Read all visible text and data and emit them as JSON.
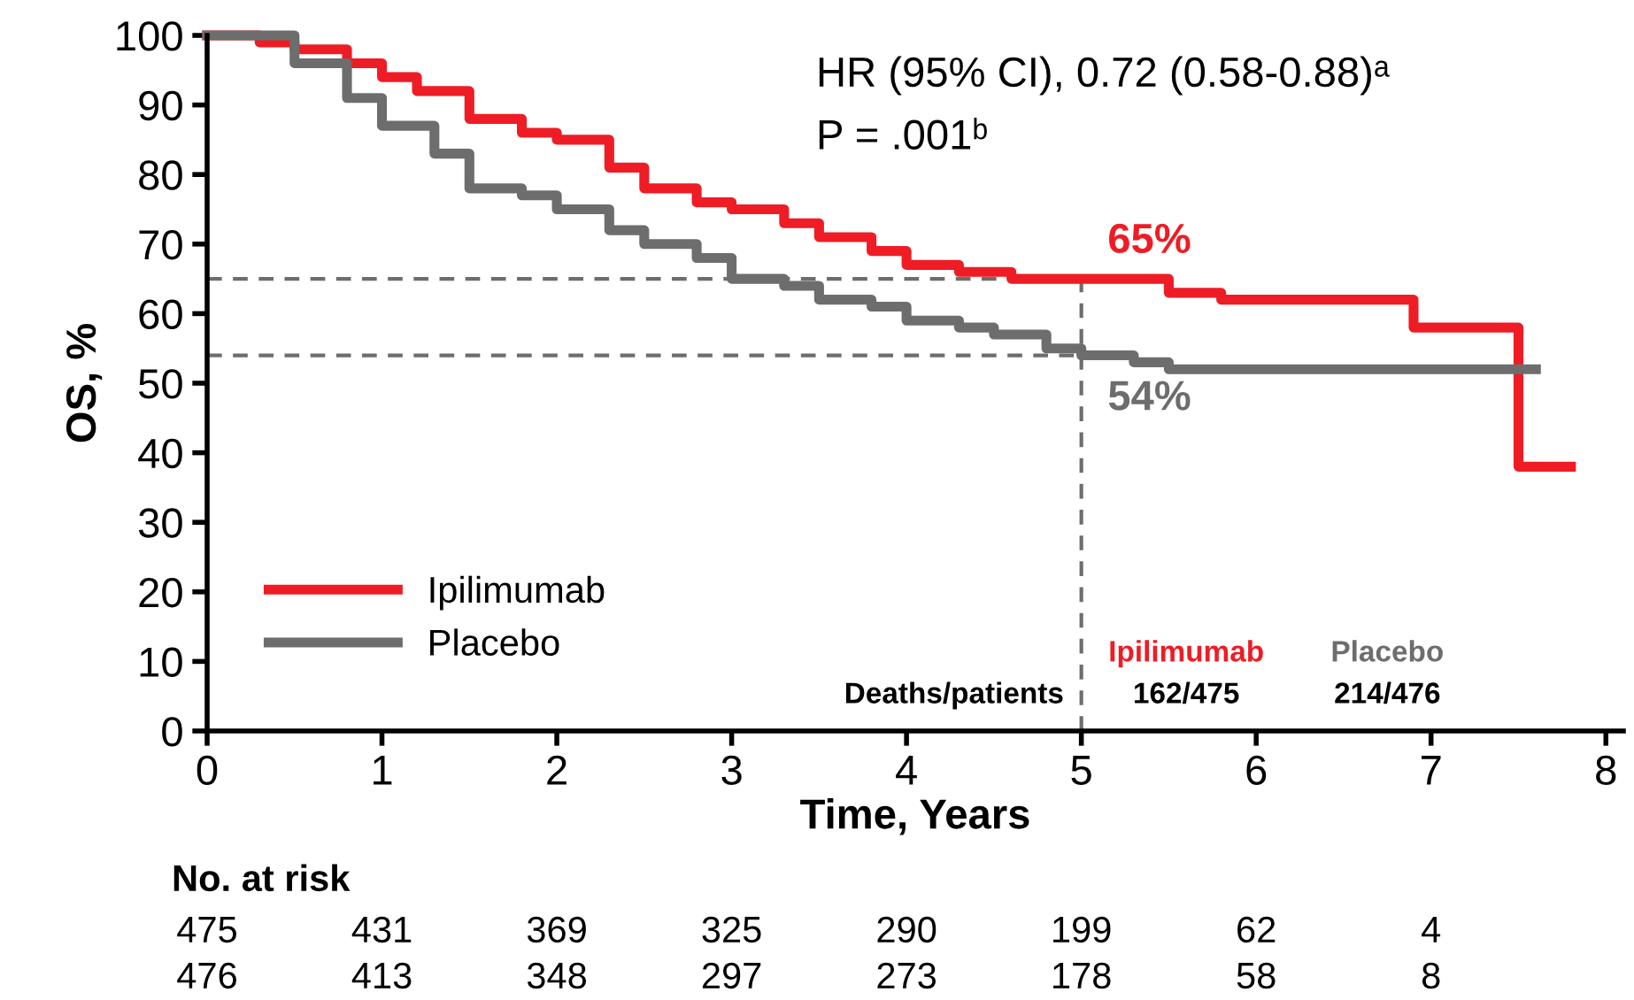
{
  "chart_data": {
    "type": "step",
    "ylabel": "OS, %",
    "xlabel": "Time, Years",
    "series": [
      {
        "name": "Ipilimumab",
        "color": "#ee1c25",
        "x": [
          0,
          0.3,
          0.5,
          0.8,
          1,
          1.2,
          1.5,
          1.8,
          2,
          2.3,
          2.5,
          2.8,
          3,
          3.3,
          3.5,
          3.8,
          4,
          4.3,
          4.5,
          4.6,
          5,
          5.3,
          5.5,
          5.8,
          6,
          6.9,
          7.5,
          7.8
        ],
        "values": [
          100,
          99,
          98,
          96,
          94,
          92,
          88,
          86,
          85,
          81,
          78,
          76,
          75,
          73,
          71,
          69,
          67,
          66,
          66,
          65,
          65,
          65,
          63,
          62,
          62,
          58,
          38,
          38
        ]
      },
      {
        "name": "Placebo",
        "color": "#6d6d6d",
        "x": [
          0,
          0.3,
          0.5,
          0.8,
          1,
          1.3,
          1.5,
          1.8,
          2,
          2.3,
          2.5,
          2.8,
          3,
          3.3,
          3.5,
          3.8,
          4,
          4.3,
          4.5,
          4.8,
          5,
          5.3,
          5.5,
          5.7,
          6.5,
          7.6
        ],
        "values": [
          100,
          100,
          96,
          91,
          87,
          83,
          78,
          77,
          75,
          72,
          70,
          68,
          65,
          64,
          62,
          61,
          59,
          58,
          57,
          55,
          54,
          53,
          52,
          52,
          52,
          52
        ]
      }
    ],
    "xlim": [
      0,
      8.1
    ],
    "xticks": [
      0,
      1,
      2,
      3,
      4,
      5,
      6,
      7,
      8
    ],
    "ylim": [
      0,
      100
    ],
    "yticks": [
      0,
      10,
      20,
      30,
      40,
      50,
      60,
      70,
      80,
      90,
      100
    ],
    "ref_lines": [
      {
        "axis": "y",
        "value": 65,
        "label": "65%",
        "color": "#6d6d6d",
        "line_style": "dashed"
      },
      {
        "axis": "y",
        "value": 54,
        "label": "54%",
        "color": "#6d6d6d",
        "line_style": "dashed"
      },
      {
        "axis": "x",
        "value": 5,
        "color": "#6d6d6d",
        "line_style": "dashed"
      }
    ],
    "legend": "bottom left",
    "grid": false,
    "line_style": "solid",
    "marker": "none",
    "annotations": [
      "HR (95% CI), 0.72 (0.58-0.88)ᵃ",
      "P = .001ᵇ",
      "Deaths/patients",
      "Ipilimumab",
      "Placebo",
      "162/475",
      "214/476",
      "No. at risk",
      "475",
      "431",
      "369",
      "325",
      "290",
      "199",
      "62",
      "4",
      "476",
      "413",
      "348",
      "297",
      "273",
      "178",
      "58",
      "8"
    ]
  }
}
